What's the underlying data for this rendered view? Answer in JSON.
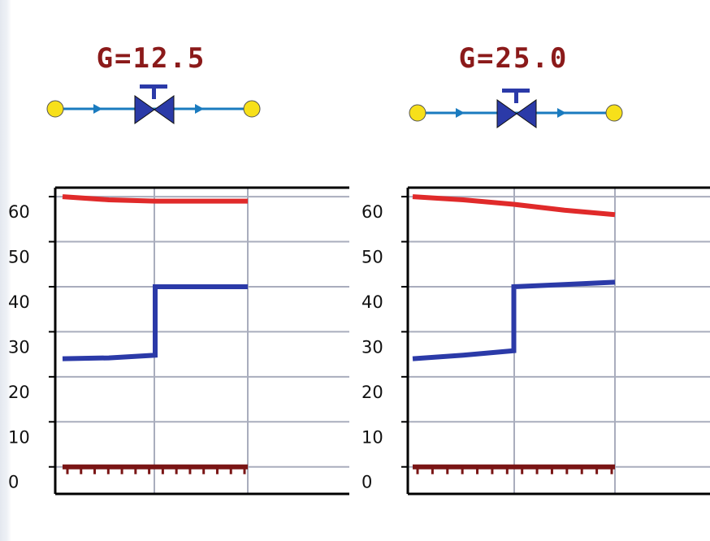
{
  "colors": {
    "title": "#8b1a1a",
    "pipe": "#1a7bbf",
    "valve": "#2b3aa8",
    "node": "#f7e01a",
    "grid": "#a9adbd",
    "axis": "#000000",
    "upper_line": "#e02a2a",
    "lower_line": "#2b3aa8",
    "zero_line": "#7a1515"
  },
  "schematics": [
    {
      "label": "G=12.5",
      "icon": "valve-icon"
    },
    {
      "label": "G=25.0",
      "icon": "valve-icon"
    }
  ],
  "chart_data": [
    {
      "type": "line",
      "title": "",
      "xlabel": "",
      "ylabel": "",
      "ylim": [
        -6,
        62
      ],
      "yticks": [
        0,
        10,
        20,
        30,
        40,
        50,
        60
      ],
      "grid": true,
      "series": [
        {
          "x": [
            0,
            1,
            2,
            2,
            3,
            4
          ],
          "values": [
            60,
            59.3,
            59,
            59,
            59,
            59
          ]
        },
        {
          "x": [
            0,
            1,
            2,
            2,
            3,
            4
          ],
          "values": [
            24,
            24.2,
            24.8,
            40,
            40,
            40
          ]
        },
        {
          "x": [
            0,
            4
          ],
          "values": [
            0,
            0
          ]
        }
      ]
    },
    {
      "type": "line",
      "title": "",
      "xlabel": "",
      "ylabel": "",
      "ylim": [
        -6,
        62
      ],
      "yticks": [
        0,
        10,
        20,
        30,
        40,
        50,
        60
      ],
      "grid": true,
      "series": [
        {
          "x": [
            0,
            1,
            2,
            3,
            4
          ],
          "values": [
            60,
            59.3,
            58.3,
            57,
            56
          ]
        },
        {
          "x": [
            0,
            1,
            2,
            2,
            3,
            4
          ],
          "values": [
            24,
            24.8,
            25.8,
            40,
            40.5,
            41
          ]
        },
        {
          "x": [
            0,
            4
          ],
          "values": [
            0,
            0
          ]
        }
      ]
    }
  ]
}
